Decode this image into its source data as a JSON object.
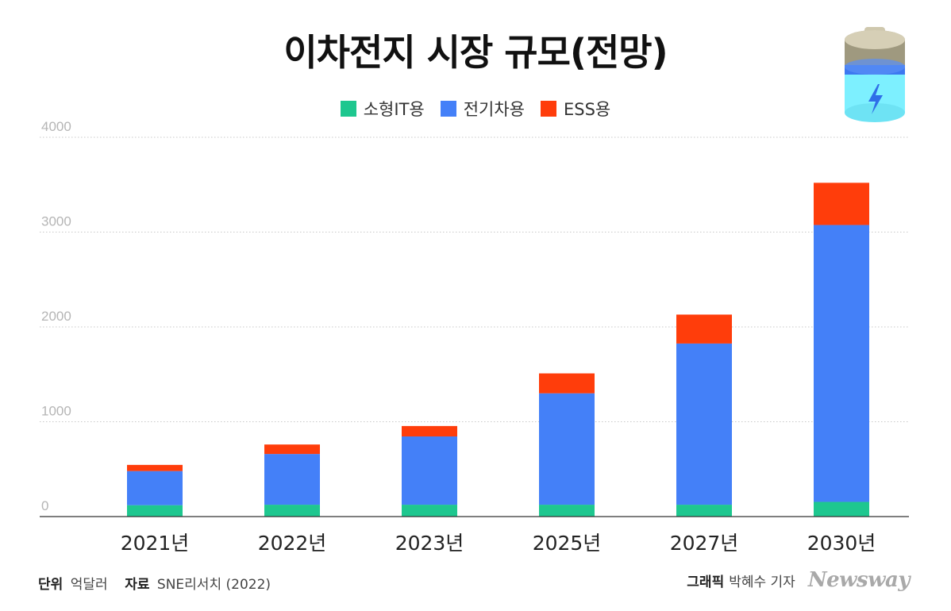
{
  "chart_data": {
    "type": "bar",
    "stacked": true,
    "title": "이차전지 시장 규모(전망)",
    "categories": [
      "2021년",
      "2022년",
      "2023년",
      "2025년",
      "2027년",
      "2030년"
    ],
    "series": [
      {
        "name": "소형IT용",
        "color": "#1ec78f",
        "values": [
          120,
          125,
          125,
          125,
          125,
          155
        ]
      },
      {
        "name": "전기차용",
        "color": "#4480f8",
        "values": [
          360,
          535,
          720,
          1175,
          1700,
          2920
        ]
      },
      {
        "name": "ESS용",
        "color": "#ff3d0b",
        "values": [
          65,
          100,
          110,
          210,
          305,
          445
        ]
      }
    ],
    "ylim": [
      0,
      4000
    ],
    "yticks": [
      0,
      1000,
      2000,
      3000,
      4000
    ],
    "xlabel": "",
    "ylabel": "",
    "grid": true,
    "legend_position": "top-center"
  },
  "footer": {
    "unit_label": "단위",
    "unit_value": "억달러",
    "source_label": "자료",
    "source_value": "SNE리서치 (2022)",
    "credit_label": "그래픽",
    "credit_value": "박혜수 기자",
    "brand": "Newsway"
  }
}
